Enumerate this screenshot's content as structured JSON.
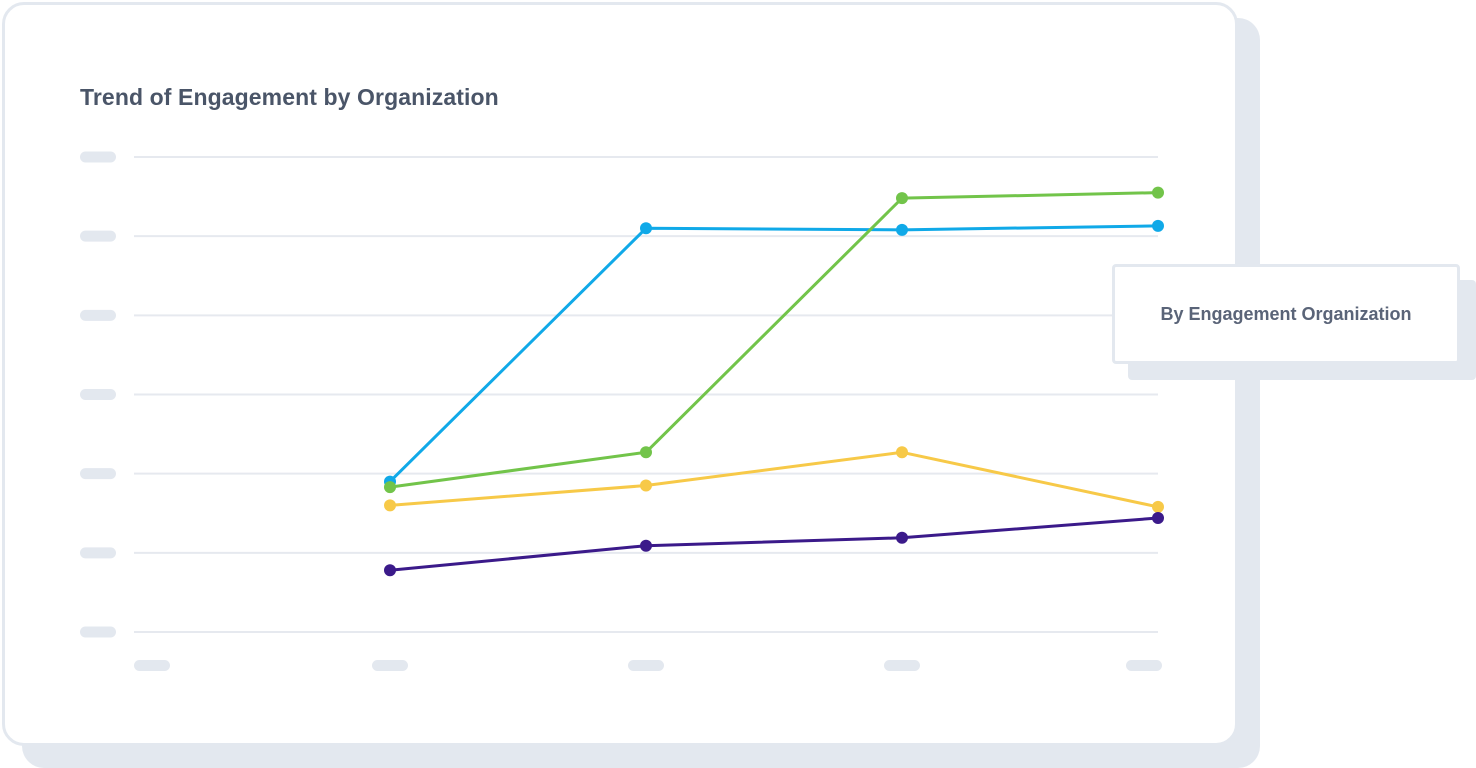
{
  "chart_data": {
    "type": "line",
    "title": "Trend of Engagement by Organization",
    "xlabel": "",
    "ylabel": "",
    "x_tick_count": 5,
    "y_tick_count": 7,
    "tick_labels_visible": false,
    "grid": true,
    "ylim": [
      0,
      6
    ],
    "x": [
      1,
      2,
      3,
      4
    ],
    "xlim": [
      0,
      4
    ],
    "legend": {
      "placement": "right",
      "text": "By Engagement Organization"
    },
    "series": [
      {
        "color": "#10a9e8",
        "values": [
          1.9,
          5.1,
          5.08,
          5.13
        ]
      },
      {
        "color": "#72c44a",
        "values": [
          1.83,
          2.27,
          5.48,
          5.55
        ]
      },
      {
        "color": "#f7c948",
        "values": [
          1.6,
          1.85,
          2.27,
          1.58
        ]
      },
      {
        "color": "#3b1a8a",
        "values": [
          0.78,
          1.09,
          1.19,
          1.44
        ]
      }
    ]
  }
}
